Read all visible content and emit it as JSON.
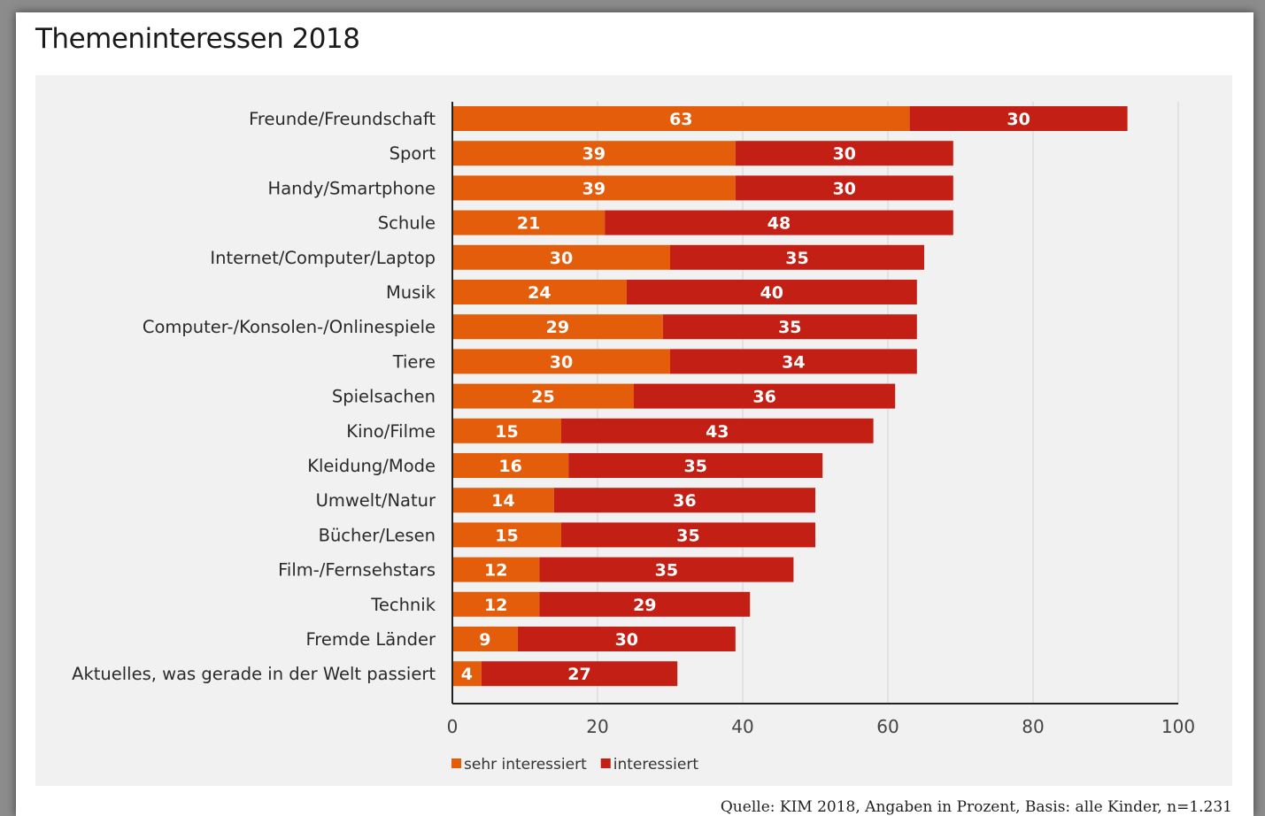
{
  "colors": {
    "sehr": "#e35d0b",
    "interessiert": "#c41f15",
    "grid": "#d4d4d4",
    "axis": "#222222",
    "panel": "#f1f1f1"
  },
  "chart_data": {
    "type": "bar",
    "orientation": "horizontal",
    "stacked": true,
    "title": "Themeninteressen 2018",
    "categories": [
      "Freunde/Freundschaft",
      "Sport",
      "Handy/Smartphone",
      "Schule",
      "Internet/Computer/Laptop",
      "Musik",
      "Computer-/Konsolen-/Onlinespiele",
      "Tiere",
      "Spielsachen",
      "Kino/Filme",
      "Kleidung/Mode",
      "Umwelt/Natur",
      "Bücher/Lesen",
      "Film-/Fernsehstars",
      "Technik",
      "Fremde Länder",
      "Aktuelles, was gerade in der Welt passiert"
    ],
    "series": [
      {
        "name": "sehr interessiert",
        "color": "#e35d0b",
        "values": [
          63,
          39,
          39,
          21,
          30,
          24,
          29,
          30,
          25,
          15,
          16,
          14,
          15,
          12,
          12,
          9,
          4
        ]
      },
      {
        "name": "interessiert",
        "color": "#c41f15",
        "values": [
          30,
          30,
          30,
          48,
          35,
          40,
          35,
          34,
          36,
          43,
          35,
          36,
          35,
          35,
          29,
          30,
          27
        ]
      }
    ],
    "xlim": [
      0,
      100
    ],
    "xticks": [
      "0",
      "20",
      "40",
      "60",
      "80",
      "100"
    ],
    "grid": true,
    "legend_position": "bottom-center"
  },
  "source": "Quelle: KIM 2018, Angaben in Prozent, Basis: alle Kinder, n=1.231"
}
